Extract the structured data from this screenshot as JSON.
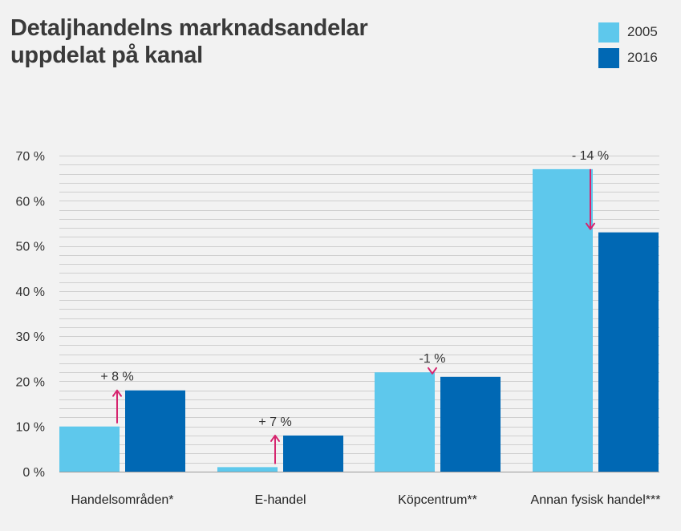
{
  "title_line1": "Detaljhandelns marknadsandelar",
  "title_line2": "uppdelat på kanal",
  "colors": {
    "s2005": "#5ec8ec",
    "s2016": "#0068b4",
    "arrow": "#d6246e",
    "grid": "#cfcfcf",
    "axis": "#9a9a9a"
  },
  "chart_data": {
    "type": "bar",
    "title": "Detaljhandelns marknadsandelar uppdelat på kanal",
    "xlabel": "",
    "ylabel": "",
    "categories": [
      "Handelsområden*",
      "E-handel",
      "Köpcentrum**",
      "Annan fysisk handel***"
    ],
    "series": [
      {
        "name": "2005",
        "values": [
          10,
          1,
          22,
          67
        ]
      },
      {
        "name": "2016",
        "values": [
          18,
          8,
          21,
          53
        ]
      }
    ],
    "annotations": [
      "+ 8 %",
      "+ 7 %",
      "-1 %",
      "- 14 %"
    ],
    "ylim": [
      0,
      70
    ],
    "yticks": [
      0,
      10,
      20,
      30,
      40,
      50,
      60,
      70
    ],
    "ytick_labels": [
      "0 %",
      "10 %",
      "20 %",
      "30 %",
      "40 %",
      "50 %",
      "60 %",
      "70 %"
    ],
    "grid": true,
    "legend": "top-right"
  }
}
